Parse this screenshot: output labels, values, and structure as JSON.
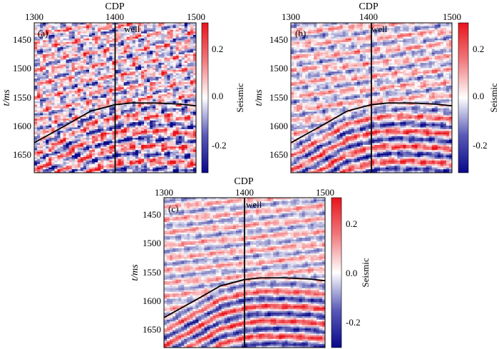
{
  "chart_data": [
    {
      "type": "heatmap",
      "panel_label": "(a)",
      "xlabel": "CDP",
      "ylabel": "t/ms",
      "xlim": [
        1300,
        1500
      ],
      "ylim": [
        1420,
        1680
      ],
      "x_ticks": [
        1300,
        1400,
        1500
      ],
      "y_ticks": [
        1450,
        1500,
        1550,
        1600,
        1650
      ],
      "well_cdp": 1400,
      "well_label": "well",
      "horizon": [
        [
          1300,
          1628
        ],
        [
          1340,
          1597
        ],
        [
          1370,
          1573
        ],
        [
          1400,
          1562
        ],
        [
          1420,
          1559
        ],
        [
          1450,
          1559
        ],
        [
          1480,
          1561
        ],
        [
          1500,
          1564
        ]
      ],
      "colorbar": {
        "label": "Seismic",
        "min": -0.3,
        "max": 0.3,
        "ticks": [
          0.2,
          0.0,
          -0.2
        ],
        "tick_labels": [
          "0.2",
          "0.0",
          "-0.2"
        ],
        "low_color": "#08088a",
        "mid_color": "#ffffff",
        "high_color": "#e8141b"
      },
      "noise": 0.75,
      "seed": 11
    },
    {
      "type": "heatmap",
      "panel_label": "(b)",
      "xlabel": "CDP",
      "ylabel": "t/ms",
      "xlim": [
        1300,
        1500
      ],
      "ylim": [
        1420,
        1680
      ],
      "x_ticks": [
        1300,
        1400,
        1500
      ],
      "y_ticks": [
        1450,
        1500,
        1550,
        1600,
        1650
      ],
      "well_cdp": 1400,
      "well_label": "well",
      "horizon": [
        [
          1300,
          1628
        ],
        [
          1340,
          1597
        ],
        [
          1370,
          1573
        ],
        [
          1400,
          1562
        ],
        [
          1420,
          1559
        ],
        [
          1450,
          1559
        ],
        [
          1480,
          1561
        ],
        [
          1500,
          1564
        ]
      ],
      "colorbar": {
        "label": "Seismic",
        "min": -0.3,
        "max": 0.3,
        "ticks": [
          0.2,
          0.0,
          -0.2
        ],
        "tick_labels": [
          "0.2",
          "0.0",
          "-0.2"
        ],
        "low_color": "#08088a",
        "mid_color": "#ffffff",
        "high_color": "#e8141b"
      },
      "noise": 0.4,
      "seed": 23
    },
    {
      "type": "heatmap",
      "panel_label": "(c)",
      "xlabel": "CDP",
      "ylabel": "t/ms",
      "xlim": [
        1300,
        1500
      ],
      "ylim": [
        1420,
        1680
      ],
      "x_ticks": [
        1300,
        1400,
        1500
      ],
      "y_ticks": [
        1450,
        1500,
        1550,
        1600,
        1650
      ],
      "well_cdp": 1400,
      "well_label": "well",
      "horizon": [
        [
          1300,
          1628
        ],
        [
          1340,
          1597
        ],
        [
          1370,
          1573
        ],
        [
          1400,
          1562
        ],
        [
          1420,
          1559
        ],
        [
          1450,
          1559
        ],
        [
          1480,
          1561
        ],
        [
          1500,
          1564
        ]
      ],
      "colorbar": {
        "label": "Seismic",
        "min": -0.3,
        "max": 0.3,
        "ticks": [
          0.2,
          0.0,
          -0.2
        ],
        "tick_labels": [
          "0.2",
          "0.0",
          "-0.2"
        ],
        "low_color": "#08088a",
        "mid_color": "#ffffff",
        "high_color": "#e8141b"
      },
      "noise": 0.28,
      "seed": 37
    }
  ]
}
